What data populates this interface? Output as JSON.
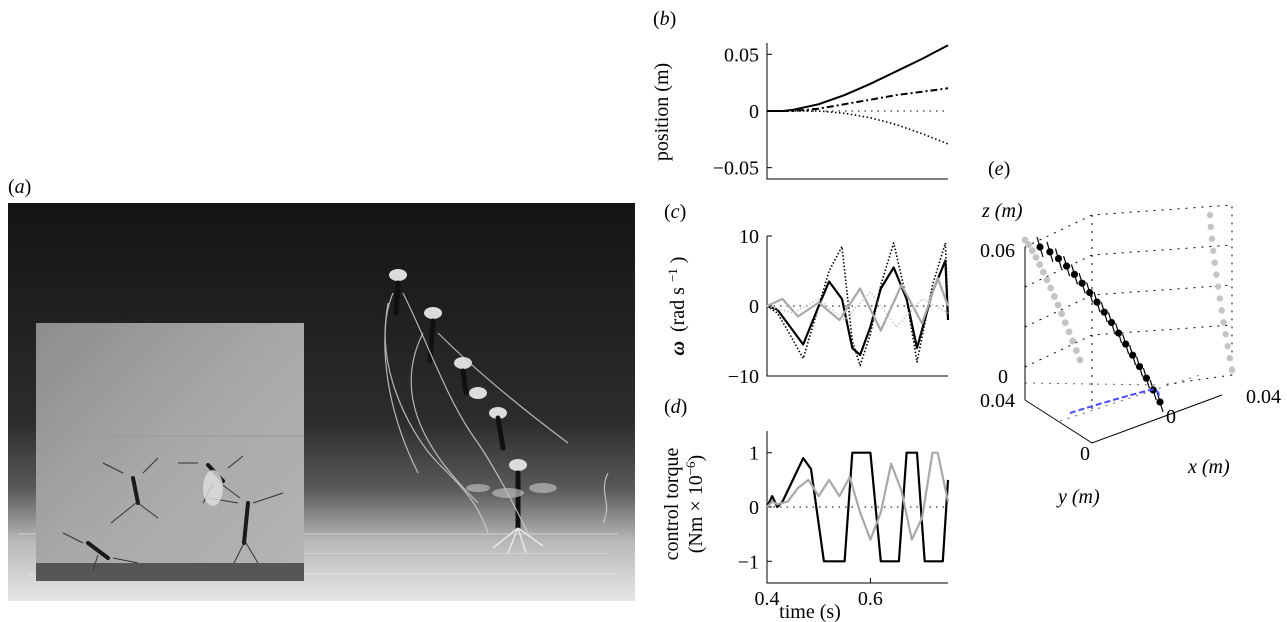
{
  "panels": {
    "a": {
      "letter": "a"
    },
    "b": {
      "letter": "b"
    },
    "c": {
      "letter": "c"
    },
    "d": {
      "letter": "d"
    },
    "e": {
      "letter": "e"
    }
  },
  "colors": {
    "black": "#000000",
    "grey": "#999999",
    "light_grey": "#c8c8c8",
    "blue": "#4a4aff"
  },
  "chart_data": [
    {
      "panel": "b",
      "type": "line",
      "ylabel": "position (m)",
      "yticks": [
        "0.05",
        "0",
        "−0.05"
      ],
      "ytick_values": [
        0.05,
        0,
        -0.05
      ],
      "ylim": [
        -0.06,
        0.06
      ],
      "xlim": [
        0.4,
        0.75
      ],
      "series": [
        {
          "style": "solid",
          "x": [
            0.4,
            0.43,
            0.45,
            0.5,
            0.55,
            0.6,
            0.65,
            0.7,
            0.75
          ],
          "y": [
            0,
            0,
            0.001,
            0.006,
            0.014,
            0.024,
            0.035,
            0.046,
            0.058
          ]
        },
        {
          "style": "dashdot",
          "x": [
            0.4,
            0.45,
            0.5,
            0.55,
            0.6,
            0.65,
            0.7,
            0.75
          ],
          "y": [
            0,
            0,
            0.002,
            0.006,
            0.01,
            0.014,
            0.017,
            0.02
          ]
        },
        {
          "style": "dotted",
          "x": [
            0.4,
            0.5,
            0.55,
            0.6,
            0.65,
            0.7,
            0.75
          ],
          "y": [
            0,
            0,
            -0.002,
            -0.006,
            -0.012,
            -0.02,
            -0.029
          ]
        }
      ]
    },
    {
      "panel": "c",
      "type": "line",
      "ylabel_symbol": "ω",
      "ylabel_unit": "(rad s",
      "ylabel_exp": "−1",
      "ylabel_close": ")",
      "yticks": [
        "10",
        "0",
        "−10"
      ],
      "ytick_values": [
        10,
        0,
        -10
      ],
      "ylim": [
        -10,
        10
      ],
      "xlim": [
        0.4,
        0.75
      ],
      "series": [
        {
          "style": "solid-black",
          "x": [
            0.4,
            0.42,
            0.44,
            0.47,
            0.5,
            0.52,
            0.545,
            0.565,
            0.58,
            0.6,
            0.62,
            0.645,
            0.67,
            0.69,
            0.72,
            0.745,
            0.75
          ],
          "y": [
            0,
            -0.5,
            -2.5,
            -5.5,
            0,
            3.5,
            1,
            -6,
            -7,
            -3,
            2.5,
            5.5,
            1,
            -6,
            2,
            6.5,
            -2
          ]
        },
        {
          "style": "dotted-black",
          "x": [
            0.4,
            0.42,
            0.44,
            0.47,
            0.5,
            0.52,
            0.545,
            0.565,
            0.58,
            0.6,
            0.62,
            0.645,
            0.67,
            0.69,
            0.72,
            0.745,
            0.75
          ],
          "y": [
            0,
            -1,
            -3.5,
            -7.5,
            0,
            5,
            8.5,
            -5,
            -8.5,
            -4,
            3,
            9,
            1,
            -8,
            3,
            9,
            -1
          ]
        },
        {
          "style": "solid-grey",
          "x": [
            0.4,
            0.43,
            0.46,
            0.5,
            0.54,
            0.58,
            0.62,
            0.66,
            0.7,
            0.73,
            0.75
          ],
          "y": [
            0,
            1,
            -1.5,
            0.5,
            -2,
            2.5,
            -3.5,
            3,
            -2.5,
            4,
            0
          ]
        },
        {
          "style": "dotted-grey",
          "x": [
            0.4,
            0.45,
            0.5,
            0.55,
            0.6,
            0.65,
            0.7,
            0.75
          ],
          "y": [
            0,
            -1,
            1,
            -2,
            2,
            -3,
            1,
            -1
          ]
        }
      ]
    },
    {
      "panel": "d",
      "type": "line",
      "ylabel_line1": "control torque",
      "ylabel_line2_pre": "(Nm × 10",
      "ylabel_exp": "−6",
      "ylabel_line2_post": ")",
      "xlabel": "time (s)",
      "xticks": [
        "0.4",
        "0.6"
      ],
      "xtick_values": [
        0.4,
        0.6
      ],
      "yticks": [
        "1",
        "0",
        "−1"
      ],
      "ytick_values": [
        1,
        0,
        -1
      ],
      "ylim": [
        -1.4,
        1.4
      ],
      "xlim": [
        0.4,
        0.75
      ],
      "series": [
        {
          "style": "solid-black",
          "x": [
            0.4,
            0.41,
            0.42,
            0.43,
            0.45,
            0.47,
            0.485,
            0.51,
            0.53,
            0.55,
            0.565,
            0.585,
            0.6,
            0.62,
            0.635,
            0.655,
            0.67,
            0.69,
            0.705,
            0.725,
            0.74,
            0.75
          ],
          "y": [
            0,
            0.2,
            0,
            0.1,
            0.5,
            0.9,
            0.7,
            -1,
            -1,
            -1,
            1,
            1,
            1,
            -1,
            -1,
            -1,
            1,
            1,
            -1,
            -1,
            -1,
            0.5
          ]
        },
        {
          "style": "solid-grey",
          "x": [
            0.4,
            0.41,
            0.42,
            0.44,
            0.46,
            0.48,
            0.5,
            0.52,
            0.54,
            0.56,
            0.58,
            0.6,
            0.62,
            0.64,
            0.66,
            0.68,
            0.7,
            0.72,
            0.73,
            0.75
          ],
          "y": [
            0,
            0.1,
            0.05,
            0.1,
            0.35,
            0.5,
            0.2,
            0.5,
            0.2,
            0.55,
            -0.1,
            -0.6,
            -0.1,
            0.8,
            0.3,
            -0.6,
            -0.2,
            1,
            1,
            0.1
          ]
        }
      ]
    },
    {
      "panel": "e",
      "type": "scatter",
      "zlabel": "z (m)",
      "xlabel": "x (m)",
      "ylabel": "y (m)",
      "zticks": [
        "0.06",
        "0"
      ],
      "xticks": [
        "0.04",
        "0"
      ],
      "yticks": [
        "0.04",
        "0"
      ],
      "points_black": 17,
      "points_grey_back": 16,
      "points_grey_side": 14
    }
  ]
}
